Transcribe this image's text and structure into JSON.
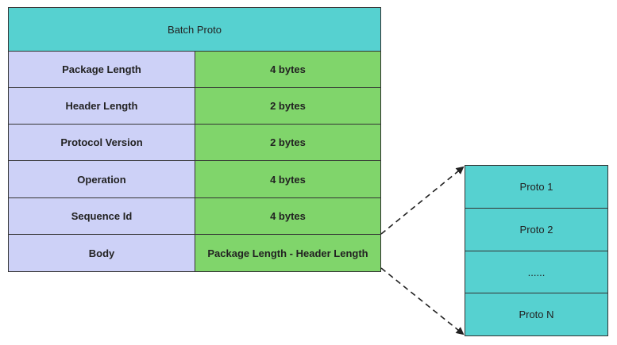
{
  "batch": {
    "title": "Batch Proto",
    "rows": [
      {
        "field": "Package Length",
        "size": "4 bytes"
      },
      {
        "field": "Header Length",
        "size": "2 bytes"
      },
      {
        "field": "Protocol Version",
        "size": "2 bytes"
      },
      {
        "field": "Operation",
        "size": "4 bytes"
      },
      {
        "field": "Sequence Id",
        "size": "4 bytes"
      },
      {
        "field": "Body",
        "size": "Package Length - Header Length"
      }
    ]
  },
  "body_expansion": {
    "items": [
      "Proto 1",
      "Proto 2",
      "......",
      "Proto N"
    ]
  },
  "colors": {
    "header": "#56d1d0",
    "field": "#cdd1f7",
    "size": "#80d56b",
    "proto": "#56d1d0"
  }
}
